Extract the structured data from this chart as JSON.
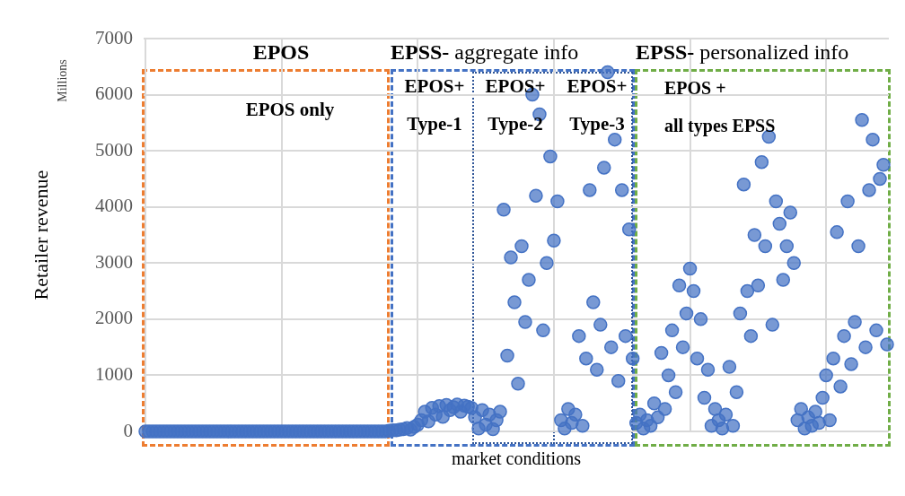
{
  "chart_data": {
    "type": "scatter",
    "xlabel": "market conditions",
    "ylabel": "Retailer revenue",
    "annotations": [
      "Millions",
      "EPOS",
      "EPOS only",
      "EPSS- aggregate info",
      "EPOS+",
      "Type-1",
      "EPOS+",
      "Type-2",
      "EPOS+",
      "Type-3",
      "EPSS- personalized info",
      "EPOS +",
      "all types EPSS"
    ],
    "categories": [
      null,
      null,
      null,
      null,
      null,
      null,
      null,
      null,
      null,
      null,
      null,
      null,
      null,
      null,
      null,
      null,
      null,
      null,
      null,
      null,
      null,
      null,
      null,
      null,
      null,
      null,
      null,
      null,
      null,
      null,
      null,
      null,
      null,
      null,
      null,
      null,
      null,
      null,
      null,
      null,
      null,
      null,
      null,
      null,
      null,
      null,
      null,
      null,
      null,
      null,
      null,
      null,
      null,
      null,
      null,
      null,
      null,
      null,
      null,
      null,
      null,
      null,
      null,
      null,
      null,
      null,
      null,
      null,
      null,
      null,
      null,
      null,
      null,
      null,
      null,
      null,
      null,
      null,
      null,
      null,
      null,
      null,
      null,
      null,
      null,
      null,
      null,
      null,
      null,
      null,
      null,
      null,
      null,
      null,
      null,
      null,
      null,
      null,
      null,
      null,
      null,
      null,
      null,
      null,
      null,
      null,
      null,
      null,
      null,
      null,
      null,
      null,
      null,
      null,
      null,
      null,
      null,
      null,
      null,
      null,
      null,
      null,
      null,
      null,
      null,
      null,
      null,
      null,
      null,
      null,
      null,
      null,
      null,
      null,
      null,
      null,
      null,
      null,
      null,
      null,
      null,
      null,
      null,
      null,
      null,
      null,
      null,
      null,
      null,
      null,
      null,
      null,
      null,
      null,
      null,
      null,
      null,
      null,
      null,
      null,
      null,
      null,
      null,
      null,
      null,
      null,
      null,
      null,
      null,
      null,
      null,
      null,
      null,
      null,
      null,
      null,
      null,
      null,
      null,
      null,
      null,
      null,
      null,
      null,
      null,
      null,
      null,
      null,
      null,
      null,
      null,
      null,
      null,
      null,
      null,
      null,
      null,
      null,
      null,
      null,
      null,
      null,
      null,
      null,
      null,
      null,
      null,
      null
    ],
    "series": [
      {
        "color": "#4472c4",
        "values": [
          0,
          0,
          0,
          0,
          0,
          0,
          0,
          0,
          0,
          0,
          0,
          0,
          0,
          0,
          0,
          0,
          0,
          0,
          0,
          0,
          0,
          0,
          0,
          0,
          0,
          0,
          0,
          0,
          0,
          0,
          0,
          0,
          0,
          0,
          0,
          0,
          0,
          0,
          0,
          0,
          0,
          0,
          0,
          0,
          0,
          0,
          0,
          0,
          0,
          0,
          0,
          0,
          0,
          0,
          0,
          0,
          0,
          0,
          0,
          0,
          0,
          0,
          0,
          0,
          0,
          0,
          0,
          0,
          10,
          20,
          20,
          30,
          40,
          60,
          30,
          80,
          120,
          200,
          350,
          180,
          420,
          300,
          450,
          260,
          470,
          380,
          430,
          480,
          350,
          460,
          440,
          420,
          250,
          50,
          380,
          120,
          300,
          40,
          200,
          350,
          3950,
          1350,
          3100,
          2300,
          850,
          3300,
          1950,
          2700,
          6000,
          4200,
          5650,
          1800,
          3000,
          4900,
          3400,
          4100,
          200,
          50,
          400,
          150,
          300,
          1700,
          100,
          1300,
          4300,
          2300,
          1100,
          1900,
          4700,
          6400,
          1500,
          5200,
          900,
          4300,
          1700,
          3600,
          1300,
          150,
          300,
          50,
          200,
          100,
          500,
          250,
          1400,
          400,
          1000,
          1800,
          700,
          2600,
          1500,
          2100,
          2900,
          2500,
          1300,
          2000,
          600,
          1100,
          100,
          400,
          200,
          50,
          300,
          1150,
          100,
          700,
          2100,
          4400,
          2500,
          1700,
          3500,
          2600,
          4800,
          3300,
          5250,
          1900,
          4100,
          3700,
          2700,
          3300,
          3900,
          3000,
          200,
          400,
          50,
          250,
          100,
          350,
          150,
          600,
          1000,
          200,
          1300,
          3550,
          800,
          1700,
          4100,
          1200,
          1950,
          3300,
          5550,
          1500,
          4300,
          5200,
          1800,
          4500,
          4750,
          1550
        ]
      }
    ],
    "ylim": [
      0,
      7000
    ],
    "yticks": [
      0,
      1000,
      2000,
      3000,
      4000,
      5000,
      6000,
      7000
    ],
    "grid": true,
    "marker": "circle"
  }
}
